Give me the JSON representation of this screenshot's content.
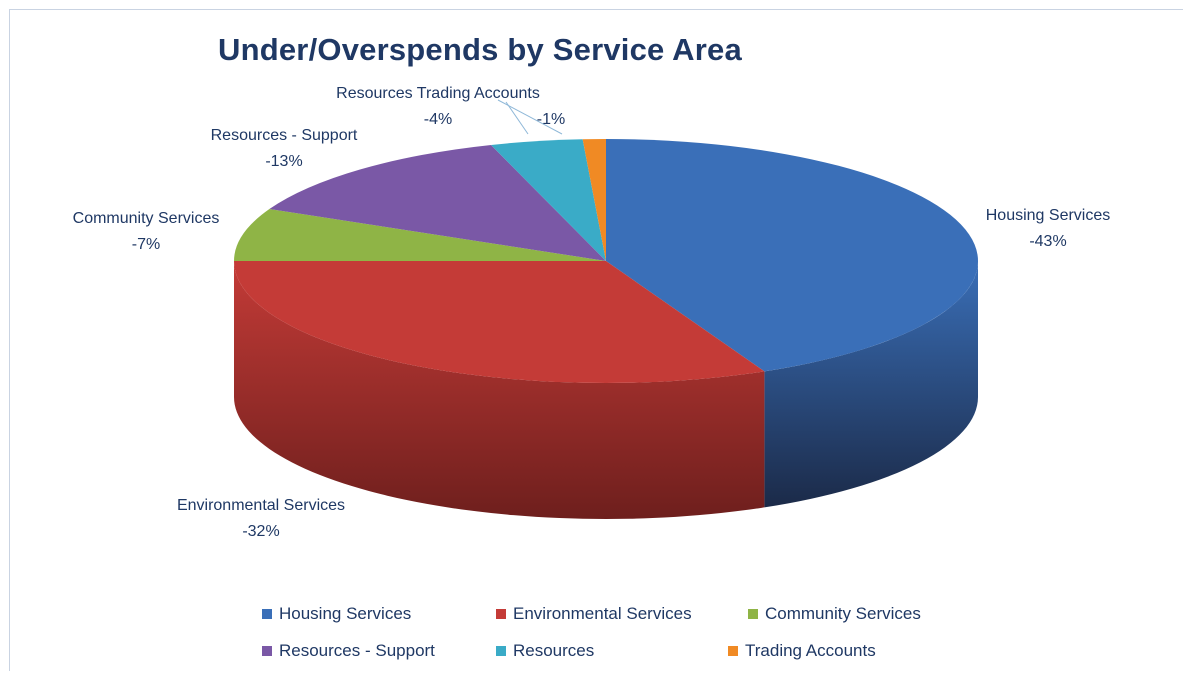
{
  "chart_data": {
    "type": "pie",
    "title": "Under/Overspends by Service Area",
    "slices": [
      {
        "label": "Housing Services",
        "value": -43,
        "data_label": "-43%",
        "color": "#3a6fb8",
        "side_color": "#1b2a48"
      },
      {
        "label": "Environmental Services",
        "value": -32,
        "data_label": "-32%",
        "color": "#c43b37",
        "side_color": "#6e1f1d"
      },
      {
        "label": "Community Services",
        "value": -7,
        "data_label": "-7%",
        "color": "#8fb446",
        "side_color": "#4f6a22"
      },
      {
        "label": "Resources - Support",
        "value": -13,
        "data_label": "-13%",
        "color": "#7a58a6",
        "side_color": "#402c5c"
      },
      {
        "label": "Resources Trading Accounts",
        "value": -4,
        "data_label": "-4%",
        "color": "#3aabc7",
        "side_color": "#1d6072"
      },
      {
        "label": "Trading Accounts",
        "value": -1,
        "data_label": "-1%",
        "color": "#f08a24",
        "side_color": "#8f4e10"
      }
    ],
    "legend": [
      {
        "label": "Housing Services",
        "color": "#3a6fb8"
      },
      {
        "label": "Environmental Services",
        "color": "#c43b37"
      },
      {
        "label": "Community Services",
        "color": "#8fb446"
      },
      {
        "label": "Resources - Support",
        "color": "#7a58a6"
      },
      {
        "label": "Resources",
        "color": "#3aabc7"
      },
      {
        "label": "Trading Accounts",
        "color": "#f08a24"
      }
    ],
    "legend_position": "bottom",
    "style": "3d"
  }
}
